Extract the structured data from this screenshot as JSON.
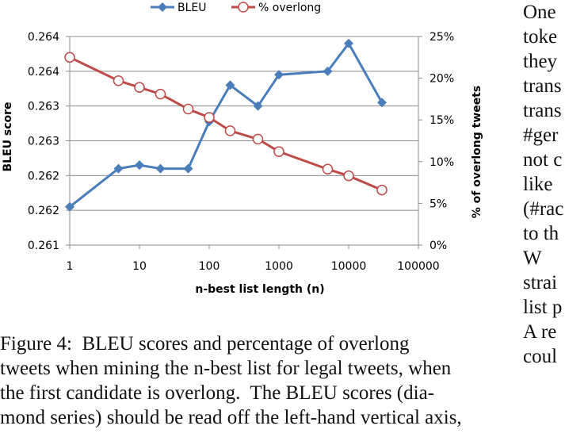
{
  "chart_data": {
    "type": "line",
    "xscale": "log",
    "xlabel": "n-best list length (n)",
    "ylabel_left": "BLEU score",
    "ylabel_right": "% of overlong tweets",
    "x_ticks": [
      "1",
      "10",
      "100",
      "1000",
      "10000",
      "100000"
    ],
    "xlim": [
      1,
      100000
    ],
    "left_ticks": [
      "0.261",
      "0.262",
      "0.262",
      "0.263",
      "0.263",
      "0.264",
      "0.264"
    ],
    "ylim_left": [
      0,
      6
    ],
    "right_ticks": [
      "0%",
      "5%",
      "10%",
      "15%",
      "20%",
      "25%"
    ],
    "ylim_right": [
      0,
      25
    ],
    "grid": "horizontal",
    "legend_position": "top",
    "series": [
      {
        "name": "BLEU",
        "axis": "left",
        "marker": "diamond",
        "color": "#4a7ebb",
        "x": [
          1,
          5,
          10,
          20,
          50,
          100,
          200,
          500,
          1000,
          5000,
          10000,
          30000
        ],
        "y": [
          1.1,
          2.2,
          2.3,
          2.2,
          2.2,
          3.55,
          4.6,
          4.0,
          4.9,
          5.0,
          5.8,
          4.1
        ]
      },
      {
        "name": "% overlong",
        "axis": "right",
        "marker": "circle",
        "color": "#be4b48",
        "x": [
          1,
          5,
          10,
          20,
          50,
          100,
          200,
          500,
          1000,
          5000,
          10000,
          30000
        ],
        "y": [
          22.5,
          19.7,
          18.9,
          18.1,
          16.3,
          15.3,
          13.7,
          12.7,
          11.2,
          9.1,
          8.3,
          6.6
        ]
      }
    ]
  },
  "caption_lines": [
    "Figure 4:  BLEU scores and percentage of overlong",
    "tweets when mining the n-best list for legal tweets, when",
    "the first candidate is overlong.  The BLEU scores (dia-",
    "mond series) should be read off the left-hand vertical axis,"
  ],
  "side_text_lines": [
    "One",
    "toke",
    "they",
    "trans",
    "trans",
    "#ger",
    "not c",
    "like",
    "(#rac",
    "to th",
    "W",
    "strai",
    "list p",
    "A re",
    "coul"
  ]
}
